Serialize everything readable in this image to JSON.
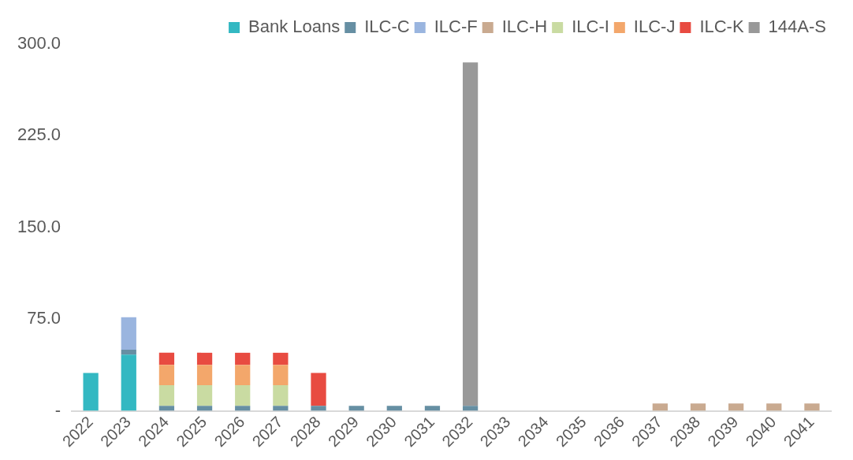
{
  "chart_data": {
    "type": "bar",
    "stacked": true,
    "categories": [
      "2022",
      "2023",
      "2024",
      "2025",
      "2026",
      "2027",
      "2028",
      "2029",
      "2030",
      "2031",
      "2032",
      "2033",
      "2034",
      "2035",
      "2036",
      "2037",
      "2038",
      "2039",
      "2040",
      "2041"
    ],
    "series": [
      {
        "name": "Bank Loans",
        "color": "#33b8c2",
        "values": [
          31,
          46,
          null,
          null,
          null,
          null,
          null,
          null,
          null,
          null,
          null,
          null,
          null,
          null,
          null,
          null,
          null,
          null,
          null,
          null
        ]
      },
      {
        "name": "ILC-C",
        "color": "#668fa3",
        "values": [
          null,
          4,
          4,
          4,
          4,
          4,
          4,
          4,
          4,
          4,
          4,
          null,
          null,
          null,
          null,
          null,
          null,
          null,
          null,
          null
        ]
      },
      {
        "name": "ILC-F",
        "color": "#9ab5df",
        "values": [
          null,
          26.5,
          null,
          null,
          null,
          null,
          null,
          null,
          null,
          null,
          null,
          null,
          null,
          null,
          null,
          null,
          null,
          null,
          null,
          null
        ]
      },
      {
        "name": "ILC-H",
        "color": "#c9aa90",
        "values": [
          null,
          null,
          null,
          null,
          null,
          null,
          null,
          null,
          null,
          null,
          null,
          null,
          null,
          null,
          null,
          6,
          6,
          6,
          6,
          6
        ]
      },
      {
        "name": "ILC-I",
        "color": "#c9dba2",
        "values": [
          null,
          null,
          17,
          17,
          17,
          17,
          null,
          null,
          null,
          null,
          null,
          null,
          null,
          null,
          null,
          null,
          null,
          null,
          null,
          null
        ]
      },
      {
        "name": "ILC-J",
        "color": "#f3a76b",
        "values": [
          null,
          null,
          16.5,
          16.5,
          16.5,
          16.5,
          null,
          null,
          null,
          null,
          null,
          null,
          null,
          null,
          null,
          null,
          null,
          null,
          null,
          null
        ]
      },
      {
        "name": "ILC-K",
        "color": "#e84b41",
        "values": [
          null,
          null,
          10,
          10,
          10,
          10,
          27,
          null,
          null,
          null,
          null,
          null,
          null,
          null,
          null,
          null,
          null,
          null,
          null,
          null
        ]
      },
      {
        "name": "144A-S",
        "color": "#999999",
        "values": [
          null,
          null,
          null,
          null,
          null,
          null,
          null,
          null,
          null,
          null,
          281,
          null,
          null,
          null,
          null,
          null,
          null,
          null,
          null,
          null
        ]
      }
    ],
    "ylim": [
      0,
      300
    ],
    "yticks": [
      {
        "value": 0,
        "label": "-"
      },
      {
        "value": 75,
        "label": "75.0"
      },
      {
        "value": 150,
        "label": "150.0"
      },
      {
        "value": 225,
        "label": "225.0"
      },
      {
        "value": 300,
        "label": "300.0"
      }
    ],
    "grid": false,
    "legend": "top right"
  }
}
